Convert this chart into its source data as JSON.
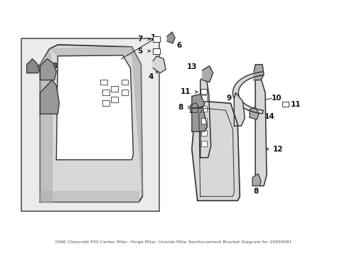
{
  "bg_color": "#ffffff",
  "line_color": "#333333",
  "fill_light": "#d8d8d8",
  "fill_dark": "#aaaaaa",
  "fig_width": 4.89,
  "fig_height": 3.6,
  "dpi": 100,
  "title": "1996 Chevrolet P30 Center Pillar, Hinge Pillar, Uniside Pillar Reinforcement Bracket Diagram for 15959091"
}
